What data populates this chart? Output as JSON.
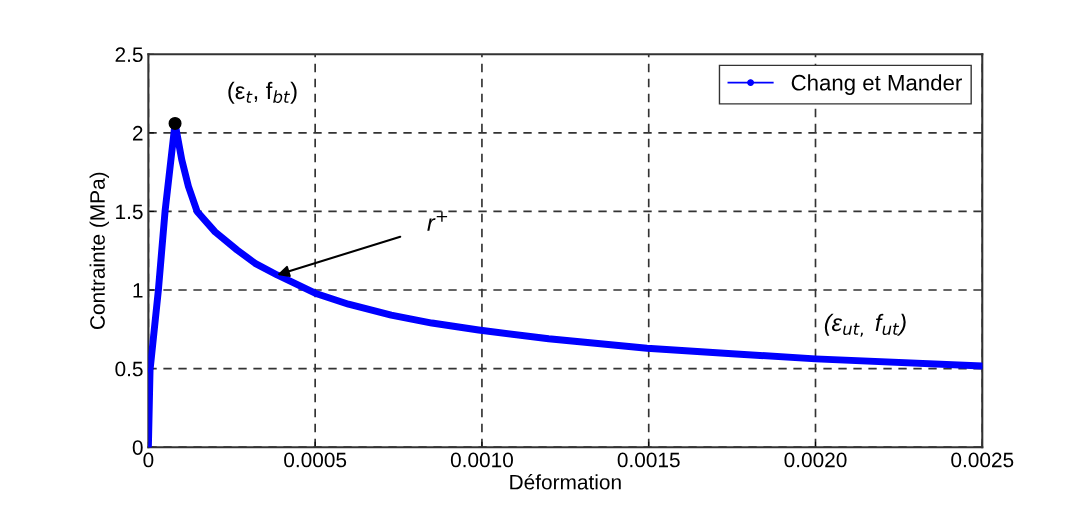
{
  "chart_data": {
    "type": "line",
    "xlabel": "Déformation",
    "ylabel": "Contrainte (MPa)",
    "xlim": [
      0,
      0.0025
    ],
    "xticks": [
      0,
      0.0005,
      {
        "value": 0.001,
        "label": "0.0010"
      },
      0.0015,
      {
        "value": 0.002,
        "label": "0.0020"
      },
      0.0025
    ],
    "ylim": [
      0,
      2.5
    ],
    "yticks": [
      0,
      0.5,
      1,
      1.5,
      2,
      2.5
    ],
    "grid": true,
    "legend": "top right",
    "series": [
      {
        "name": "Chang et Mander",
        "color": "#0000ff",
        "marker": "circle",
        "x": [
          0,
          5e-06,
          3e-05,
          5e-05,
          8e-05,
          0.0001,
          0.00012,
          0.000146,
          0.0002,
          0.000266,
          0.00032,
          0.000386,
          0.0005,
          0.0006,
          0.000728,
          0.00085,
          0.00099,
          0.0012,
          0.001495,
          0.00175,
          0.002,
          0.0025
        ],
        "values": [
          0,
          0.49,
          1.0,
          1.5,
          2.06,
          1.83,
          1.66,
          1.5,
          1.37,
          1.255,
          1.17,
          1.096,
          0.98,
          0.91,
          0.84,
          0.79,
          0.746,
          0.69,
          0.63,
          0.595,
          0.562,
          0.517
        ]
      },
      {
        "type": "scatter",
        "color": "#000000",
        "x": [
          8e-05
        ],
        "values": [
          2.06
        ]
      }
    ],
    "annotations": [
      {
        "text": "(ε$_{t}$, f$_{bt}$)",
        "x": 8e-05,
        "y": 2.06
      },
      {
        "text": "r$^{+}$",
        "x": 0.000386,
        "y": 1.096
      },
      "(ε$_{ut,}$ f$_{ut}$)"
    ]
  }
}
